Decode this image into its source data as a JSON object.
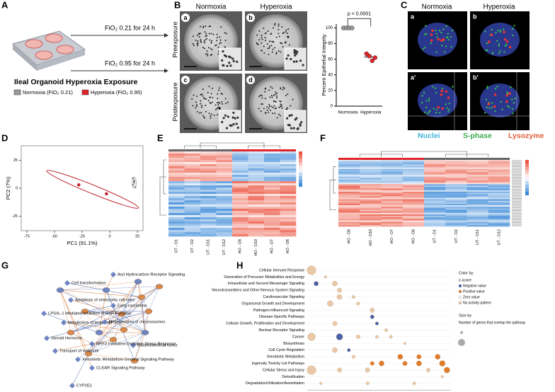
{
  "letters": [
    "A",
    "B",
    "C",
    "D",
    "E",
    "F",
    "G",
    "H"
  ],
  "panel_a": {
    "arrow_top": "FiO₂ 0.21 for 24 h",
    "arrow_bottom": "FiO₂ 0.95 for 24 h",
    "title": "Ileal Organoid Hyperoxia Exposure",
    "legend": [
      {
        "name": "Normoxia (FiO₂ 0.21)",
        "color": "#9a9a9a"
      },
      {
        "name": "Hyperoxia (FiO₂ 0.95)",
        "color": "#e0262b"
      }
    ]
  },
  "panel_b": {
    "columns": [
      "Normoxia",
      "Hyperoxia"
    ],
    "rows": [
      "Preexposure",
      "Postexposure"
    ],
    "image_labels": [
      "a",
      "b",
      "c",
      "d"
    ],
    "chart_data": {
      "type": "scatter",
      "y_label": "Percent Epithelial Integrity",
      "annotation": "p < 0.0001",
      "categories": [
        "Normoxia",
        "Hyperoxia"
      ],
      "series": [
        {
          "color": "#9a9a9a",
          "values": [
            100,
            100,
            100,
            100
          ]
        },
        {
          "color": "#e0262b",
          "values": [
            67,
            64,
            58,
            62
          ]
        }
      ],
      "ylim": [
        0,
        105
      ],
      "yticks": [
        0,
        20,
        40,
        60,
        80,
        100
      ]
    }
  },
  "panel_c": {
    "columns": [
      "Normoxia",
      "Hyperoxia"
    ],
    "image_labels": [
      "a",
      "b",
      "a'",
      "b'"
    ],
    "stains": [
      {
        "name": "Nuclei",
        "color": "#3fb4d8"
      },
      {
        "name": "S-phase",
        "color": "#3daa4c"
      },
      {
        "name": "Lysozyme",
        "color": "#e0623b"
      }
    ]
  },
  "panel_d": {
    "chart_data": {
      "type": "scatter",
      "x_label": "PC1 (91.1%)",
      "y_label": "PC2 (7%)",
      "xlim": [
        -80,
        30
      ],
      "ylim": [
        -38,
        38
      ],
      "xticks": [
        -75,
        -50,
        -25,
        0,
        25
      ],
      "yticks": [
        -25,
        0,
        25
      ],
      "series": [
        {
          "color": "#c0272d",
          "x": [
            -28,
            -3
          ],
          "y": [
            3,
            -5
          ]
        },
        {
          "color": "#8c8c8c",
          "x": [
            21,
            22,
            22,
            21,
            23,
            22
          ],
          "y": [
            9,
            7,
            5,
            3,
            1,
            6
          ]
        }
      ]
    }
  },
  "panel_e": {
    "columns": [
      "UT - O1",
      "UT - O2",
      "UT - O11",
      "UT - O12",
      "HO - O8",
      "HO - O10",
      "HO - O7",
      "HO - O6"
    ]
  },
  "panel_f": {
    "columns": [
      "HO - O8",
      "HO - O10",
      "HO - O7",
      "HO - O6",
      "UT - O1",
      "UT - O2",
      "UT - O11",
      "UT - O12"
    ]
  },
  "panel_g": {
    "nodes": [
      {
        "label": "Aryl Hydrocarbon Receptor Signaling"
      },
      {
        "label": "Cell transformation"
      },
      {
        "label": "Apoptosis of embryonic cell lines"
      },
      {
        "label": "LPS/IL-1 Mediated Inhibition of RXR Function"
      },
      {
        "label": "Metabolism of terpenoid"
      },
      {
        "label": "Lung carcinoma"
      },
      {
        "label": "Degeneration of chromosomes"
      },
      {
        "label": "Steroid Hormone"
      },
      {
        "label": "Transport of molecule"
      },
      {
        "label": "Gastrointestinal tumor"
      },
      {
        "label": "NRF2-mediated Oxidative Stress Response"
      },
      {
        "label": "Xenobiotic Metabolism General Signaling Pathway"
      },
      {
        "label": "CLEAR Signaling Pathway"
      },
      {
        "label": "CYP2E1"
      }
    ]
  },
  "panel_h": {
    "pathways": [
      "Cellular Immune Response",
      "Generation of Precursor Metabolites and Energy",
      "Intracellular and Second Messenger Signaling",
      "Neurotransmitters and Other Nervous System Signaling",
      "Cardiovascular Signaling",
      "Organismal Growth and Development",
      "Pathogen-Influenced Signaling",
      "Disease-Specific Pathways",
      "Cellular Growth, Proliferation and Development",
      "Nuclear Receptor Signaling",
      "Cancer",
      "Biosynthesis",
      "Cell Cycle Regulation",
      "Xenobiotic Metabolism",
      "Ingenuity Toxicity List Pathways",
      "Cellular Stress and Injury",
      "Detoxification",
      "Degradation/Utilization/Assimilation"
    ],
    "legend": {
      "color_title": "Color by",
      "color_sub": "z-score",
      "color_items": [
        {
          "name": "Negative value",
          "color": "#4a5fa8"
        },
        {
          "name": "Positive value",
          "color": "#e07b2a"
        },
        {
          "name": "Zero value",
          "color": "#ffffff"
        },
        {
          "name": "No activity pattern",
          "color": "#e8c8a8"
        }
      ],
      "size_title": "Size by",
      "size_sub": "Number of genes that overlap the pathway"
    },
    "chart_data": {
      "type": "bubble",
      "bubbles": [
        {
          "row": 0,
          "x": 0,
          "size": 12,
          "color": "#e8c8a8"
        },
        {
          "row": 1,
          "x": 3,
          "size": 2,
          "color": "#e8c8a8"
        },
        {
          "row": 2,
          "x": 1,
          "size": 5,
          "color": "#4a5fa8"
        },
        {
          "row": 2,
          "x": 5,
          "size": 6,
          "color": "#e8c8a8"
        },
        {
          "row": 3,
          "x": 6,
          "size": 5,
          "color": "#e8c8a8"
        },
        {
          "row": 4,
          "x": 6,
          "size": 6,
          "color": "#e8c8a8"
        },
        {
          "row": 4,
          "x": 9,
          "size": 3,
          "color": "#e8c8a8"
        },
        {
          "row": 5,
          "x": 4,
          "size": 7,
          "color": "#e8c8a8"
        },
        {
          "row": 5,
          "x": 10,
          "size": 3,
          "color": "#e8c8a8"
        },
        {
          "row": 6,
          "x": 13,
          "size": 5,
          "color": "#e8c8a8"
        },
        {
          "row": 7,
          "x": 13,
          "size": 4,
          "color": "#4a5fa8"
        },
        {
          "row": 8,
          "x": 5,
          "size": 5,
          "color": "#e8c8a8"
        },
        {
          "row": 8,
          "x": 14,
          "size": 3,
          "color": "#4a5fa8"
        },
        {
          "row": 9,
          "x": 16,
          "size": 3,
          "color": "#e8c8a8"
        },
        {
          "row": 10,
          "x": 0,
          "size": 10,
          "color": "#e8c8a8"
        },
        {
          "row": 10,
          "x": 6,
          "size": 8,
          "color": "#4a5fa8"
        },
        {
          "row": 10,
          "x": 10,
          "size": 4,
          "color": "#e8c8a8"
        },
        {
          "row": 10,
          "x": 14,
          "size": 3,
          "color": "#e8c8a8"
        },
        {
          "row": 10,
          "x": 17,
          "size": 3,
          "color": "#e8c8a8"
        },
        {
          "row": 11,
          "x": 20,
          "size": 2,
          "color": "#e8c8a8"
        },
        {
          "row": 12,
          "x": 5,
          "size": 6,
          "color": "#e8c8a8"
        },
        {
          "row": 12,
          "x": 8,
          "size": 3,
          "color": "#4a5fa8"
        },
        {
          "row": 13,
          "x": 9,
          "size": 3,
          "color": "#e8c8a8"
        },
        {
          "row": 13,
          "x": 19,
          "size": 6,
          "color": "#e07b2a"
        },
        {
          "row": 13,
          "x": 23,
          "size": 5,
          "color": "#e07b2a"
        },
        {
          "row": 13,
          "x": 27,
          "size": 6,
          "color": "#e07b2a"
        },
        {
          "row": 14,
          "x": 13,
          "size": 4,
          "color": "#e07b2a"
        },
        {
          "row": 14,
          "x": 15,
          "size": 6,
          "color": "#e07b2a"
        },
        {
          "row": 14,
          "x": 20,
          "size": 5,
          "color": "#e07b2a"
        },
        {
          "row": 14,
          "x": 23,
          "size": 6,
          "color": "#e07b2a"
        },
        {
          "row": 14,
          "x": 28,
          "size": 7,
          "color": "#e07b2a"
        },
        {
          "row": 15,
          "x": 0,
          "size": 12,
          "color": "#e8c8a8"
        },
        {
          "row": 15,
          "x": 6,
          "size": 5,
          "color": "#e8c8a8"
        },
        {
          "row": 15,
          "x": 12,
          "size": 5,
          "color": "#e8c8a8"
        },
        {
          "row": 15,
          "x": 25,
          "size": 4,
          "color": "#e8c8a8"
        },
        {
          "row": 15,
          "x": 29,
          "size": 7,
          "color": "#e07b2a"
        },
        {
          "row": 16,
          "x": 28,
          "size": 2,
          "color": "#e8c8a8"
        },
        {
          "row": 17,
          "x": 2,
          "size": 2,
          "color": "#e8c8a8"
        },
        {
          "row": 17,
          "x": 12,
          "size": 3,
          "color": "#e8c8a8"
        },
        {
          "row": 17,
          "x": 22,
          "size": 3,
          "color": "#e8c8a8"
        }
      ]
    }
  }
}
